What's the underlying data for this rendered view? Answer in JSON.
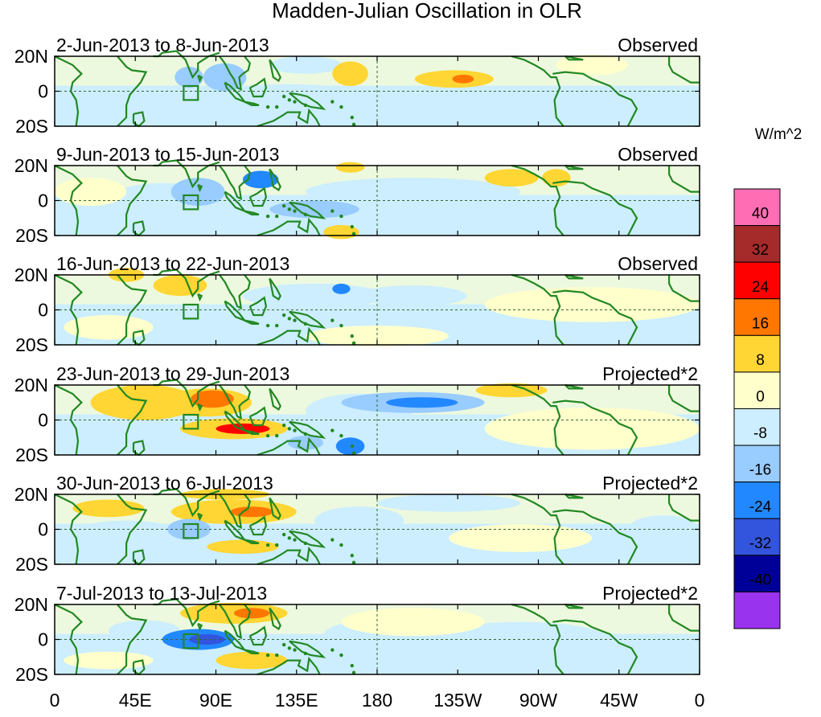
{
  "chart_data": {
    "type": "heatmap",
    "title": "Madden-Julian Oscillation in OLR",
    "variable": "OLR anomaly",
    "x_tick_labels": [
      "0",
      "45E",
      "90E",
      "135E",
      "180",
      "135W",
      "90W",
      "45W",
      "0"
    ],
    "x_tick_values_deg_east": [
      0,
      45,
      90,
      135,
      180,
      225,
      270,
      315,
      360
    ],
    "y_tick_labels": [
      "20N",
      "0",
      "20S"
    ],
    "y_tick_values_deg": [
      20,
      0,
      -20
    ],
    "ylim": [
      -20,
      20
    ],
    "xlim": [
      0,
      360
    ],
    "colorbar": {
      "unit_label": "W/m^2",
      "levels": [
        -40,
        -32,
        -24,
        -16,
        -8,
        0,
        8,
        16,
        24,
        32,
        40
      ],
      "level_labels": [
        "-40",
        "-32",
        "-24",
        "-16",
        "-8",
        "0",
        "8",
        "16",
        "24",
        "32",
        "40"
      ],
      "colors": [
        "#9933ee",
        "#000099",
        "#3355dd",
        "#2288ff",
        "#99ccff",
        "#cceeff",
        "#ffffcc",
        "#ffd633",
        "#ff7700",
        "#ff0000",
        "#a52a2a",
        "#ff6eb4"
      ]
    },
    "panels": [
      {
        "period": "2-Jun-2013 to 8-Jun-2013",
        "kind": "Observed",
        "blobs": [
          {
            "lon": 165,
            "lat": 10,
            "rx": 10,
            "ry": 7,
            "v": 10
          },
          {
            "lon": 223,
            "lat": 7,
            "rx": 22,
            "ry": 5,
            "v": 14
          },
          {
            "lon": 228,
            "lat": 7,
            "rx": 6,
            "ry": 2.5,
            "v": 18
          },
          {
            "lon": 95,
            "lat": 8,
            "rx": 12,
            "ry": 8,
            "v": -10
          },
          {
            "lon": 75,
            "lat": 8,
            "rx": 8,
            "ry": 6,
            "v": -9
          },
          {
            "lon": 50,
            "lat": -5,
            "rx": 25,
            "ry": 8,
            "v": -4
          },
          {
            "lon": 130,
            "lat": -2,
            "rx": 40,
            "ry": 6,
            "v": -5
          },
          {
            "lon": 200,
            "lat": -8,
            "rx": 100,
            "ry": 10,
            "v": -3
          },
          {
            "lon": 300,
            "lat": 15,
            "rx": 20,
            "ry": 6,
            "v": 3
          },
          {
            "lon": 140,
            "lat": 15,
            "rx": 20,
            "ry": 5,
            "v": -6
          }
        ]
      },
      {
        "period": "9-Jun-2013 to 15-Jun-2013",
        "kind": "Observed",
        "blobs": [
          {
            "lon": 115,
            "lat": 12,
            "rx": 10,
            "ry": 5,
            "v": -20
          },
          {
            "lon": 80,
            "lat": 5,
            "rx": 15,
            "ry": 8,
            "v": -10
          },
          {
            "lon": 145,
            "lat": -5,
            "rx": 25,
            "ry": 5,
            "v": -9
          },
          {
            "lon": 255,
            "lat": 13,
            "rx": 15,
            "ry": 5,
            "v": 10
          },
          {
            "lon": 280,
            "lat": 13,
            "rx": 8,
            "ry": 5,
            "v": 8
          },
          {
            "lon": 60,
            "lat": 0,
            "rx": 30,
            "ry": 10,
            "v": -4
          },
          {
            "lon": 200,
            "lat": 5,
            "rx": 60,
            "ry": 8,
            "v": -3
          },
          {
            "lon": 160,
            "lat": -18,
            "rx": 10,
            "ry": 4,
            "v": 9
          },
          {
            "lon": 165,
            "lat": 19,
            "rx": 8,
            "ry": 3,
            "v": 9
          },
          {
            "lon": 20,
            "lat": 5,
            "rx": 20,
            "ry": 8,
            "v": 4
          }
        ]
      },
      {
        "period": "16-Jun-2013 to 22-Jun-2013",
        "kind": "Observed",
        "blobs": [
          {
            "lon": 70,
            "lat": 14,
            "rx": 15,
            "ry": 6,
            "v": 9
          },
          {
            "lon": 40,
            "lat": 20,
            "rx": 10,
            "ry": 4,
            "v": 9
          },
          {
            "lon": 145,
            "lat": 8,
            "rx": 40,
            "ry": 7,
            "v": -8
          },
          {
            "lon": 160,
            "lat": 12,
            "rx": 5,
            "ry": 3,
            "v": -18
          },
          {
            "lon": 200,
            "lat": 8,
            "rx": 30,
            "ry": 6,
            "v": -5
          },
          {
            "lon": 110,
            "lat": -5,
            "rx": 35,
            "ry": 5,
            "v": -4
          },
          {
            "lon": 300,
            "lat": 3,
            "rx": 60,
            "ry": 10,
            "v": 3
          },
          {
            "lon": 30,
            "lat": -10,
            "rx": 25,
            "ry": 7,
            "v": 4
          },
          {
            "lon": 180,
            "lat": -15,
            "rx": 40,
            "ry": 6,
            "v": 3
          }
        ]
      },
      {
        "period": "23-Jun-2013 to 29-Jun-2013",
        "kind": "Projected*2",
        "blobs": [
          {
            "lon": 85,
            "lat": 10,
            "rx": 25,
            "ry": 8,
            "v": 14
          },
          {
            "lon": 88,
            "lat": 12,
            "rx": 12,
            "ry": 5,
            "v": 22
          },
          {
            "lon": 100,
            "lat": -5,
            "rx": 30,
            "ry": 6,
            "v": 14
          },
          {
            "lon": 105,
            "lat": -5,
            "rx": 15,
            "ry": 3,
            "v": 24
          },
          {
            "lon": 50,
            "lat": 10,
            "rx": 30,
            "ry": 10,
            "v": 9
          },
          {
            "lon": 165,
            "lat": -15,
            "rx": 8,
            "ry": 5,
            "v": -20
          },
          {
            "lon": 200,
            "lat": 10,
            "rx": 40,
            "ry": 6,
            "v": -12
          },
          {
            "lon": 205,
            "lat": 10,
            "rx": 20,
            "ry": 3,
            "v": -20
          },
          {
            "lon": 170,
            "lat": 5,
            "rx": 30,
            "ry": 10,
            "v": -7
          },
          {
            "lon": 300,
            "lat": -5,
            "rx": 60,
            "ry": 12,
            "v": 4
          },
          {
            "lon": 140,
            "lat": -13,
            "rx": 10,
            "ry": 4,
            "v": -9
          },
          {
            "lon": 255,
            "lat": 17,
            "rx": 20,
            "ry": 4,
            "v": 9
          }
        ]
      },
      {
        "period": "30-Jun-2013 to 6-Jul-2013",
        "kind": "Projected*2",
        "blobs": [
          {
            "lon": 100,
            "lat": 10,
            "rx": 35,
            "ry": 7,
            "v": 14
          },
          {
            "lon": 110,
            "lat": 10,
            "rx": 12,
            "ry": 3,
            "v": 22
          },
          {
            "lon": 75,
            "lat": 0,
            "rx": 12,
            "ry": 6,
            "v": -16
          },
          {
            "lon": 40,
            "lat": 0,
            "rx": 25,
            "ry": 5,
            "v": -8
          },
          {
            "lon": 105,
            "lat": -10,
            "rx": 20,
            "ry": 4,
            "v": 14
          },
          {
            "lon": 170,
            "lat": 5,
            "rx": 25,
            "ry": 8,
            "v": -8
          },
          {
            "lon": 95,
            "lat": 20,
            "rx": 25,
            "ry": 3,
            "v": 10
          },
          {
            "lon": 220,
            "lat": 15,
            "rx": 40,
            "ry": 5,
            "v": -6
          },
          {
            "lon": 340,
            "lat": 0,
            "rx": 20,
            "ry": 8,
            "v": -6
          },
          {
            "lon": 260,
            "lat": -5,
            "rx": 40,
            "ry": 8,
            "v": 4
          },
          {
            "lon": 30,
            "lat": 12,
            "rx": 20,
            "ry": 5,
            "v": 8
          }
        ]
      },
      {
        "period": "7-Jul-2013 to 13-Jul-2013",
        "kind": "Projected*2",
        "blobs": [
          {
            "lon": 80,
            "lat": 0,
            "rx": 20,
            "ry": 6,
            "v": -18
          },
          {
            "lon": 85,
            "lat": 0,
            "rx": 10,
            "ry": 3,
            "v": -26
          },
          {
            "lon": 100,
            "lat": 15,
            "rx": 30,
            "ry": 6,
            "v": 10
          },
          {
            "lon": 110,
            "lat": 15,
            "rx": 10,
            "ry": 3,
            "v": 17
          },
          {
            "lon": 110,
            "lat": -12,
            "rx": 20,
            "ry": 5,
            "v": 12
          },
          {
            "lon": 50,
            "lat": 5,
            "rx": 20,
            "ry": 6,
            "v": -8
          },
          {
            "lon": 200,
            "lat": 10,
            "rx": 40,
            "ry": 8,
            "v": 7
          },
          {
            "lon": 170,
            "lat": 2,
            "rx": 20,
            "ry": 8,
            "v": -5
          },
          {
            "lon": 260,
            "lat": 0,
            "rx": 50,
            "ry": 10,
            "v": -4
          },
          {
            "lon": 30,
            "lat": -12,
            "rx": 25,
            "ry": 5,
            "v": 3
          }
        ]
      }
    ]
  }
}
